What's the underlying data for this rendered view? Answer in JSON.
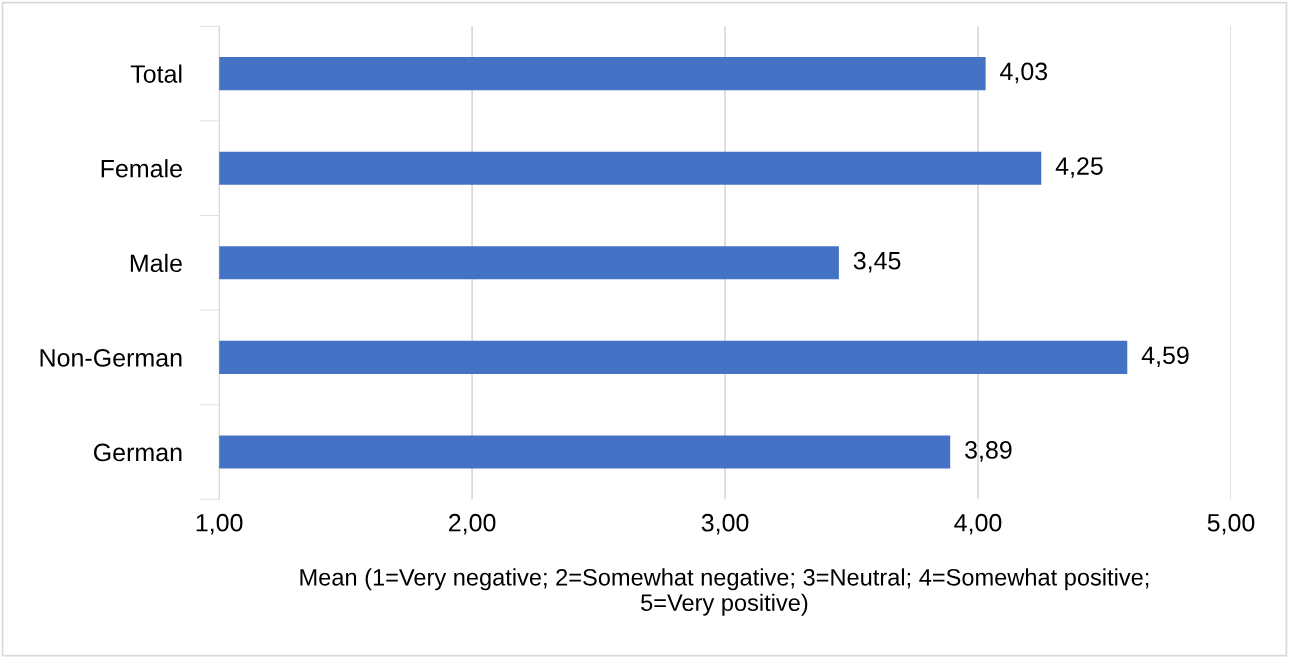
{
  "chart_data": {
    "type": "bar",
    "orientation": "horizontal",
    "categories": [
      "Total",
      "Female",
      "Male",
      "Non-German",
      "German"
    ],
    "values": [
      4.03,
      4.25,
      3.45,
      4.59,
      3.89
    ],
    "value_labels": [
      "4,03",
      "4,25",
      "3,45",
      "4,59",
      "3,89"
    ],
    "color": "#4472c4",
    "xlim": [
      1,
      5
    ],
    "xticks": [
      {
        "value": 1,
        "label": "1,00"
      },
      {
        "value": 2,
        "label": "2,00"
      },
      {
        "value": 3,
        "label": "3,00"
      },
      {
        "value": 4,
        "label": "4,00"
      },
      {
        "value": 5,
        "label": "5,00"
      }
    ],
    "xlabel": "Mean (1=Very negative; 2=Somewhat negative; 3=Neutral; 4=Somewhat positive; 5=Very positive)",
    "grid": "x"
  }
}
